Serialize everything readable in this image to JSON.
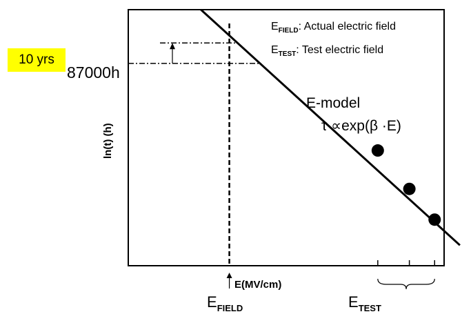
{
  "badge": "10 yrs",
  "hours_label": "87000h",
  "legend": {
    "field": {
      "main": "E",
      "sub": "FIELD",
      "text": ": Actual electric field"
    },
    "test": {
      "main": "E",
      "sub": "TEST",
      "text": ": Test electric field"
    }
  },
  "axes": {
    "ylabel": "ln(t) (h)",
    "xlabel": "E(MV/cm)"
  },
  "model": {
    "title": "E-model",
    "formula": "τ ∝exp(β ·E)"
  },
  "bottom": {
    "efield": {
      "main": "E",
      "sub": "FIELD"
    },
    "etest": {
      "main": "E",
      "sub": "TEST"
    }
  },
  "chart_data": {
    "type": "scatter",
    "title": "",
    "xlabel": "E(MV/cm)",
    "ylabel": "ln(t) (h)",
    "grid": false,
    "points": [
      {
        "x": 0.79,
        "y": 0.45
      },
      {
        "x": 0.89,
        "y": 0.3
      },
      {
        "x": 0.97,
        "y": 0.18
      }
    ],
    "fit_line": {
      "x": [
        0.23,
        1.05
      ],
      "y": [
        1.0,
        0.08
      ]
    },
    "reference": {
      "efield_x": 0.32,
      "y_87000h": 0.79,
      "y_10yrs": 0.87
    }
  }
}
